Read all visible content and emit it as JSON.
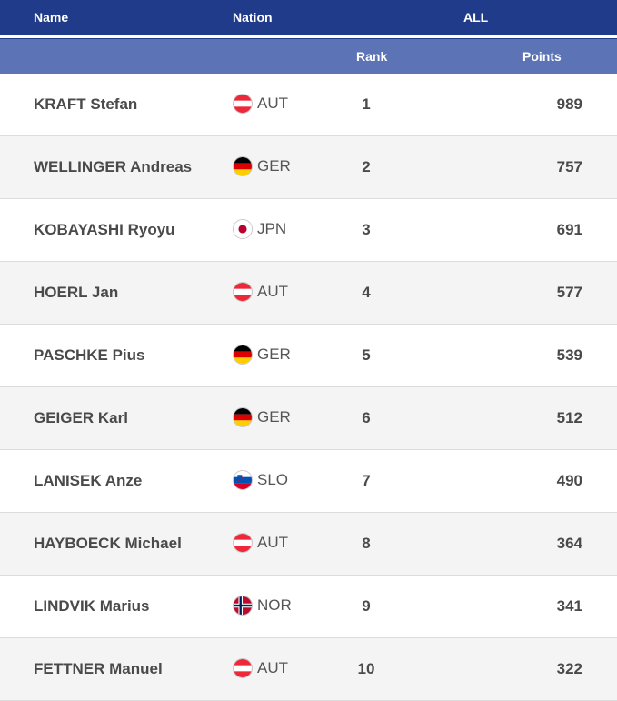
{
  "header": {
    "name_label": "Name",
    "nation_label": "Nation",
    "all_label": "ALL",
    "rank_label": "Rank",
    "points_label": "Points"
  },
  "colors": {
    "header_bg": "#213b8b",
    "subheader_bg": "#5c73b6"
  },
  "rows": [
    {
      "name": "KRAFT Stefan",
      "nation": "AUT",
      "flag_icon": "austria-flag-icon",
      "rank": "1",
      "points": "989"
    },
    {
      "name": "WELLINGER Andreas",
      "nation": "GER",
      "flag_icon": "germany-flag-icon",
      "rank": "2",
      "points": "757"
    },
    {
      "name": "KOBAYASHI Ryoyu",
      "nation": "JPN",
      "flag_icon": "japan-flag-icon",
      "rank": "3",
      "points": "691"
    },
    {
      "name": "HOERL Jan",
      "nation": "AUT",
      "flag_icon": "austria-flag-icon",
      "rank": "4",
      "points": "577"
    },
    {
      "name": "PASCHKE Pius",
      "nation": "GER",
      "flag_icon": "germany-flag-icon",
      "rank": "5",
      "points": "539"
    },
    {
      "name": "GEIGER Karl",
      "nation": "GER",
      "flag_icon": "germany-flag-icon",
      "rank": "6",
      "points": "512"
    },
    {
      "name": "LANISEK Anze",
      "nation": "SLO",
      "flag_icon": "slovenia-flag-icon",
      "rank": "7",
      "points": "490"
    },
    {
      "name": "HAYBOECK Michael",
      "nation": "AUT",
      "flag_icon": "austria-flag-icon",
      "rank": "8",
      "points": "364"
    },
    {
      "name": "LINDVIK Marius",
      "nation": "NOR",
      "flag_icon": "norway-flag-icon",
      "rank": "9",
      "points": "341"
    },
    {
      "name": "FETTNER Manuel",
      "nation": "AUT",
      "flag_icon": "austria-flag-icon",
      "rank": "10",
      "points": "322"
    }
  ]
}
